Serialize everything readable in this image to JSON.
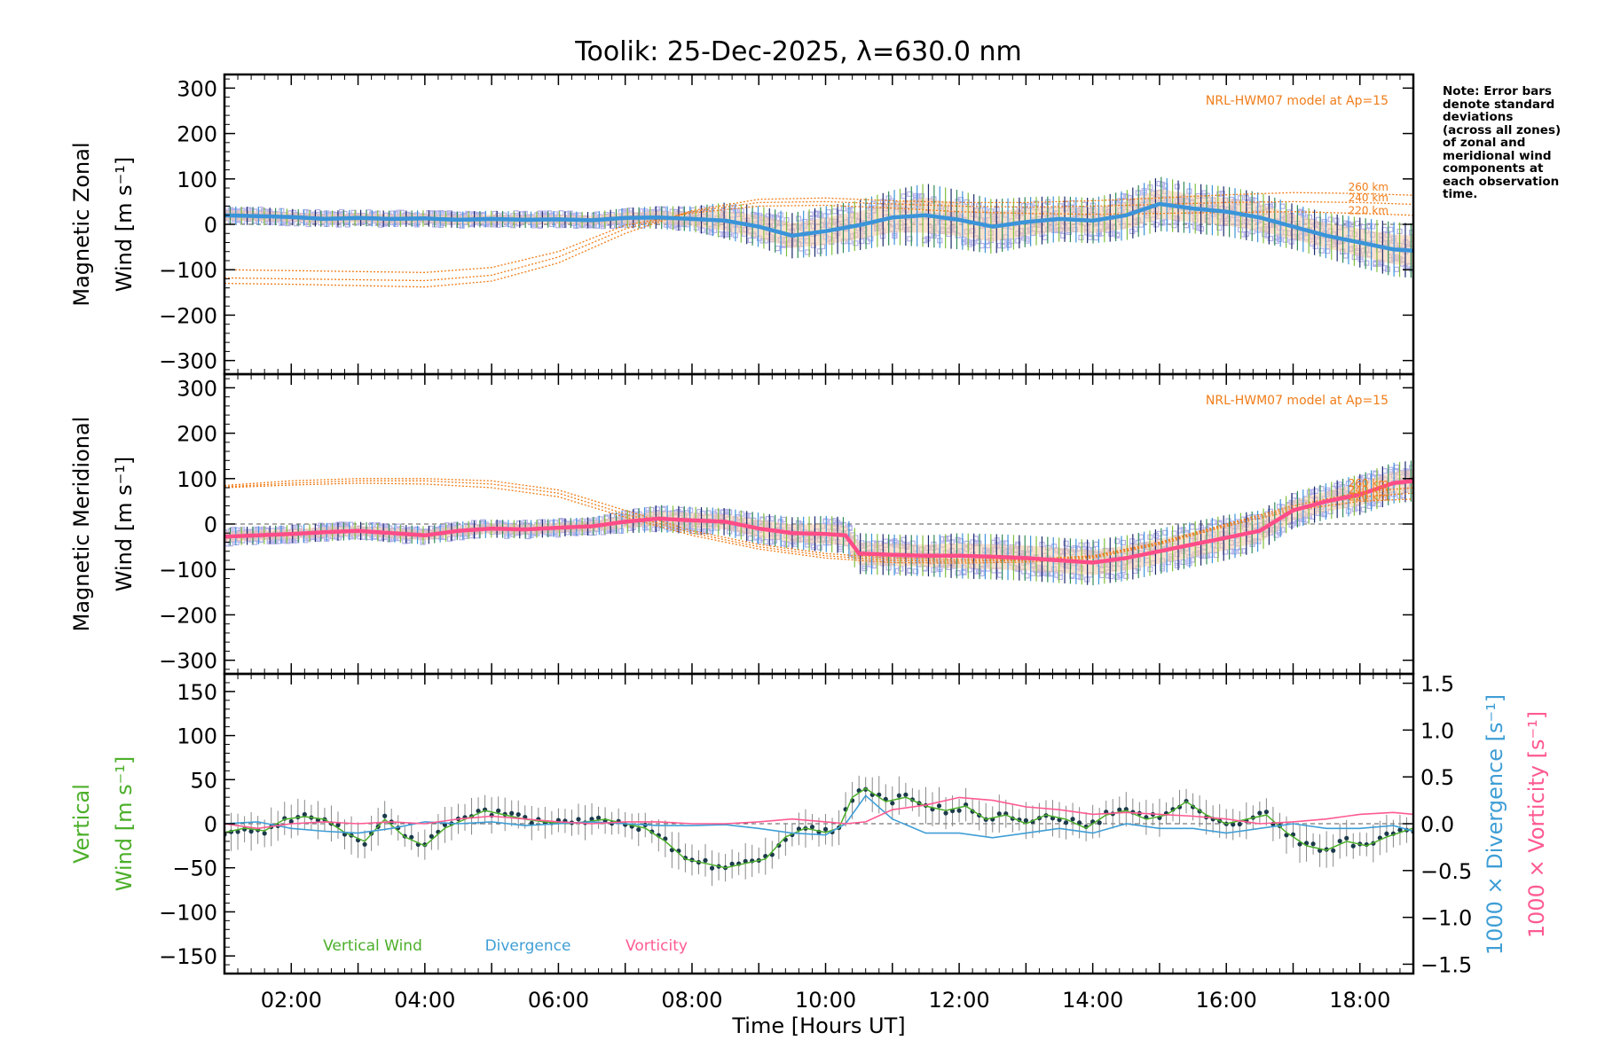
{
  "figure_title": "Toolik: 25-Dec-2025, λ=630.0 nm",
  "note_lines": [
    "Note: Error bars",
    "denote standard",
    "deviations",
    "(across all zones)",
    "of zonal and",
    "meridional wind",
    "components at",
    "each observation",
    "time."
  ],
  "colors": {
    "zonal": "#3b94d9",
    "meridional": "#ff4d88",
    "model": "#f07d19",
    "scatter": "#b3b0e8",
    "vertical": "#4caf2a",
    "divergence": "#3f9ed6",
    "vorticity": "#ff5a92",
    "axis": "#000000"
  },
  "chart_data": [
    {
      "type": "line",
      "panel": "zonal",
      "ylabel_line1": "Magnetic Zonal",
      "ylabel_line2": "Wind [m s⁻¹]",
      "ylim": [
        -330,
        330
      ],
      "yticks": [
        -300,
        -200,
        -100,
        0,
        100,
        200,
        300
      ],
      "ytick_labels": [
        "−300",
        "−200",
        "−100",
        "0",
        "100",
        "200",
        "300"
      ],
      "xlim": [
        1.0,
        18.8
      ],
      "model_label": "NRL-HWM07 model at Ap=15",
      "model_heights": [
        "260 km",
        "240 km",
        "220 km"
      ],
      "model_series": [
        {
          "name": "260 km",
          "x": [
            1,
            2,
            3,
            4,
            5,
            6,
            7,
            8,
            9,
            10,
            11,
            12,
            13,
            14,
            15,
            16,
            17,
            18,
            18.8
          ],
          "y": [
            -130,
            -132,
            -135,
            -138,
            -125,
            -85,
            -20,
            30,
            55,
            58,
            52,
            48,
            48,
            52,
            58,
            65,
            70,
            68,
            64
          ]
        },
        {
          "name": "240 km",
          "x": [
            1,
            2,
            3,
            4,
            5,
            6,
            7,
            8,
            9,
            10,
            11,
            12,
            13,
            14,
            15,
            16,
            17,
            18,
            18.8
          ],
          "y": [
            -118,
            -120,
            -122,
            -124,
            -112,
            -72,
            -10,
            28,
            48,
            50,
            45,
            40,
            38,
            40,
            44,
            48,
            50,
            48,
            44
          ]
        },
        {
          "name": "220 km",
          "x": [
            1,
            2,
            3,
            4,
            5,
            6,
            7,
            8,
            9,
            10,
            11,
            12,
            13,
            14,
            15,
            16,
            17,
            18,
            18.8
          ],
          "y": [
            -100,
            -102,
            -104,
            -106,
            -95,
            -60,
            -2,
            25,
            40,
            42,
            36,
            28,
            24,
            22,
            24,
            26,
            28,
            24,
            20
          ]
        }
      ],
      "series": [
        {
          "name": "Zonal wind",
          "x": [
            1,
            1.5,
            2,
            2.5,
            3,
            3.5,
            4,
            4.5,
            5,
            5.5,
            6,
            6.5,
            7,
            7.5,
            8,
            8.5,
            9,
            9.5,
            10,
            10.5,
            11,
            11.5,
            12,
            12.5,
            13,
            13.5,
            14,
            14.5,
            15,
            15.5,
            16,
            16.5,
            17,
            17.5,
            18,
            18.5,
            18.8
          ],
          "y": [
            20,
            18,
            16,
            12,
            14,
            12,
            13,
            10,
            12,
            10,
            11,
            9,
            14,
            15,
            12,
            8,
            -5,
            -25,
            -15,
            -2,
            15,
            20,
            10,
            -5,
            5,
            12,
            8,
            20,
            45,
            35,
            28,
            15,
            -5,
            -25,
            -40,
            -55,
            -58
          ],
          "errors": [
            20,
            20,
            18,
            18,
            18,
            18,
            18,
            18,
            18,
            18,
            18,
            18,
            22,
            25,
            28,
            40,
            45,
            50,
            55,
            55,
            60,
            70,
            65,
            60,
            55,
            50,
            50,
            55,
            60,
            55,
            55,
            55,
            50,
            50,
            55,
            60,
            60
          ]
        }
      ]
    },
    {
      "type": "line",
      "panel": "meridional",
      "ylabel_line1": "Magnetic Meridional",
      "ylabel_line2": "Wind [m s⁻¹]",
      "ylim": [
        -330,
        330
      ],
      "yticks": [
        -300,
        -200,
        -100,
        0,
        100,
        200,
        300
      ],
      "ytick_labels": [
        "−300",
        "−200",
        "−100",
        "0",
        "100",
        "200",
        "300"
      ],
      "xlim": [
        1.0,
        18.8
      ],
      "model_label": "NRL-HWM07 model at Ap=15",
      "model_heights": [
        "260 km",
        "240 km",
        "220 km"
      ],
      "model_series": [
        {
          "name": "260 km",
          "x": [
            1,
            2,
            3,
            4,
            5,
            6,
            7,
            8,
            9,
            10,
            11,
            12,
            13,
            14,
            15,
            16,
            17,
            18,
            18.8
          ],
          "y": [
            85,
            95,
            100,
            100,
            95,
            75,
            30,
            -15,
            -45,
            -65,
            -75,
            -78,
            -78,
            -70,
            -40,
            0,
            40,
            70,
            80
          ]
        },
        {
          "name": "240 km",
          "x": [
            1,
            2,
            3,
            4,
            5,
            6,
            7,
            8,
            9,
            10,
            11,
            12,
            13,
            14,
            15,
            16,
            17,
            18,
            18.8
          ],
          "y": [
            82,
            90,
            95,
            95,
            88,
            68,
            22,
            -20,
            -50,
            -70,
            -80,
            -82,
            -80,
            -72,
            -42,
            -2,
            35,
            60,
            68
          ]
        },
        {
          "name": "220 km",
          "x": [
            1,
            2,
            3,
            4,
            5,
            6,
            7,
            8,
            9,
            10,
            11,
            12,
            13,
            14,
            15,
            16,
            17,
            18,
            18.8
          ],
          "y": [
            80,
            86,
            90,
            88,
            80,
            60,
            15,
            -25,
            -55,
            -75,
            -85,
            -86,
            -84,
            -75,
            -45,
            -5,
            30,
            50,
            55
          ]
        }
      ],
      "series": [
        {
          "name": "Meridional wind",
          "x": [
            1,
            1.5,
            2,
            2.5,
            3,
            3.5,
            4,
            4.5,
            5,
            5.5,
            6,
            6.5,
            7,
            7.5,
            8,
            8.5,
            9,
            9.5,
            10,
            10.3,
            10.5,
            11,
            11.5,
            12,
            12.5,
            13,
            13.5,
            14,
            14.5,
            15,
            15.5,
            16,
            16.5,
            17,
            17.5,
            18,
            18.5,
            18.8
          ],
          "y": [
            -28,
            -25,
            -22,
            -18,
            -15,
            -20,
            -25,
            -15,
            -10,
            -12,
            -8,
            -5,
            5,
            12,
            8,
            5,
            -10,
            -20,
            -22,
            -25,
            -65,
            -68,
            -70,
            -70,
            -72,
            -75,
            -80,
            -85,
            -75,
            -60,
            -45,
            -30,
            -15,
            30,
            50,
            65,
            90,
            95
          ],
          "errors": [
            20,
            20,
            20,
            20,
            20,
            20,
            20,
            20,
            20,
            20,
            20,
            20,
            25,
            30,
            30,
            30,
            35,
            35,
            40,
            40,
            45,
            45,
            45,
            50,
            50,
            50,
            50,
            50,
            50,
            50,
            50,
            50,
            45,
            40,
            40,
            45,
            45,
            45
          ]
        }
      ]
    },
    {
      "type": "line",
      "panel": "vertical",
      "ylabel_line1": "Vertical",
      "ylabel_line2": "Wind [m s⁻¹]",
      "right_label_div": "1000 × Divergence [s⁻¹]",
      "right_label_vor": "1000 × Vorticity [s⁻¹]",
      "ylim": [
        -170,
        170
      ],
      "yticks": [
        -150,
        -100,
        -50,
        0,
        50,
        100,
        150
      ],
      "ytick_labels": [
        "−150",
        "−100",
        "−50",
        "0",
        "50",
        "100",
        "150"
      ],
      "y2lim": [
        -1.6,
        1.6
      ],
      "y2ticks": [
        -1.5,
        -1.0,
        -0.5,
        0.0,
        0.5,
        1.0,
        1.5
      ],
      "y2tick_labels": [
        "−1.5",
        "−1.0",
        "−0.5",
        "0.0",
        "0.5",
        "1.0",
        "1.5"
      ],
      "xlim": [
        1.0,
        18.8
      ],
      "xticks": [
        2,
        4,
        6,
        8,
        10,
        12,
        14,
        16,
        18
      ],
      "xtick_labels": [
        "02:00",
        "04:00",
        "06:00",
        "08:00",
        "10:00",
        "12:00",
        "14:00",
        "16:00",
        "18:00"
      ],
      "xlabel": "Time [Hours UT]",
      "legend": [
        "Vertical Wind",
        "Divergence",
        "Vorticity"
      ],
      "series": [
        {
          "name": "Vertical Wind",
          "axis": "left",
          "x": [
            1,
            1.3,
            1.6,
            1.9,
            2.2,
            2.5,
            2.8,
            3.1,
            3.4,
            3.7,
            4.0,
            4.3,
            4.6,
            4.9,
            5.2,
            5.5,
            5.8,
            6.1,
            6.4,
            6.7,
            7.0,
            7.3,
            7.6,
            7.9,
            8.2,
            8.5,
            8.8,
            9.1,
            9.4,
            9.7,
            10.0,
            10.2,
            10.4,
            10.6,
            10.9,
            11.2,
            11.5,
            11.8,
            12.1,
            12.4,
            12.7,
            13.0,
            13.3,
            13.6,
            13.9,
            14.2,
            14.5,
            14.8,
            15.1,
            15.4,
            15.7,
            16.0,
            16.3,
            16.6,
            16.9,
            17.2,
            17.5,
            17.8,
            18.1,
            18.4,
            18.8
          ],
          "y": [
            -10,
            -5,
            -8,
            5,
            8,
            5,
            -10,
            -20,
            5,
            -15,
            -25,
            -5,
            5,
            15,
            10,
            5,
            2,
            0,
            2,
            5,
            0,
            -5,
            -20,
            -40,
            -45,
            -50,
            -45,
            -40,
            -15,
            -5,
            -10,
            -5,
            30,
            40,
            25,
            30,
            20,
            15,
            20,
            5,
            10,
            0,
            10,
            5,
            -5,
            10,
            15,
            5,
            10,
            25,
            10,
            0,
            5,
            10,
            -10,
            -25,
            -30,
            -20,
            -25,
            -15,
            -5
          ]
        },
        {
          "name": "Divergence",
          "axis": "right",
          "x": [
            1,
            1.5,
            2,
            2.5,
            3,
            3.5,
            4,
            4.5,
            5,
            5.5,
            6,
            6.5,
            7,
            7.5,
            8,
            8.5,
            9,
            9.5,
            10,
            10.3,
            10.6,
            11,
            11.5,
            12,
            12.5,
            13,
            13.5,
            14,
            14.5,
            15,
            15.5,
            16,
            16.5,
            17,
            17.5,
            18,
            18.5,
            18.8
          ],
          "y": [
            0.0,
            0.02,
            -0.05,
            -0.08,
            -0.1,
            -0.05,
            0.02,
            0.0,
            0.02,
            -0.02,
            0.0,
            0.02,
            0.0,
            -0.02,
            -0.02,
            -0.01,
            -0.05,
            -0.1,
            -0.12,
            0.0,
            0.3,
            0.05,
            -0.1,
            -0.1,
            -0.15,
            -0.1,
            -0.05,
            -0.1,
            0.0,
            -0.05,
            -0.05,
            -0.1,
            -0.05,
            0.0,
            -0.05,
            -0.05,
            -0.02,
            -0.08
          ]
        },
        {
          "name": "Vorticity",
          "axis": "right",
          "x": [
            1,
            1.5,
            2,
            2.5,
            3,
            3.5,
            4,
            4.5,
            5,
            5.5,
            6,
            6.5,
            7,
            7.5,
            8,
            8.5,
            9,
            9.5,
            10,
            10.3,
            10.6,
            11,
            11.5,
            12,
            12.5,
            13,
            13.5,
            14,
            14.5,
            15,
            15.5,
            16,
            16.5,
            17,
            17.5,
            18,
            18.5,
            18.8
          ],
          "y": [
            0.0,
            -0.05,
            0.0,
            0.02,
            0.0,
            0.02,
            0.0,
            0.05,
            0.08,
            0.05,
            0.02,
            0.0,
            0.02,
            0.02,
            0.0,
            0.0,
            0.02,
            0.05,
            0.02,
            0.0,
            0.02,
            0.15,
            0.2,
            0.28,
            0.25,
            0.18,
            0.15,
            0.1,
            0.12,
            0.1,
            0.08,
            0.05,
            0.0,
            0.02,
            0.05,
            0.1,
            0.12,
            0.1
          ]
        }
      ]
    }
  ]
}
